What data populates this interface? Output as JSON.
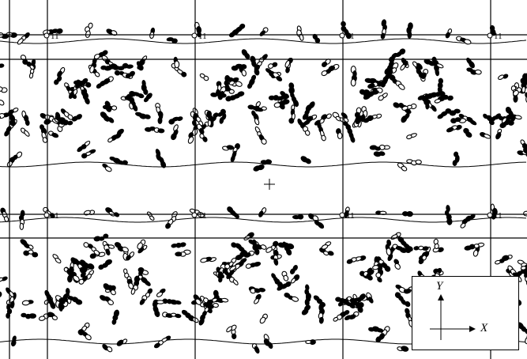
{
  "figure": {
    "cell_labels": [
      "11",
      "11",
      "11",
      "11",
      "11",
      "11",
      "11",
      "11"
    ],
    "axes_legend": {
      "y_label": "Y",
      "x_label": "X"
    },
    "colors": {
      "ink": "#000000",
      "background": "#ffffff"
    }
  }
}
